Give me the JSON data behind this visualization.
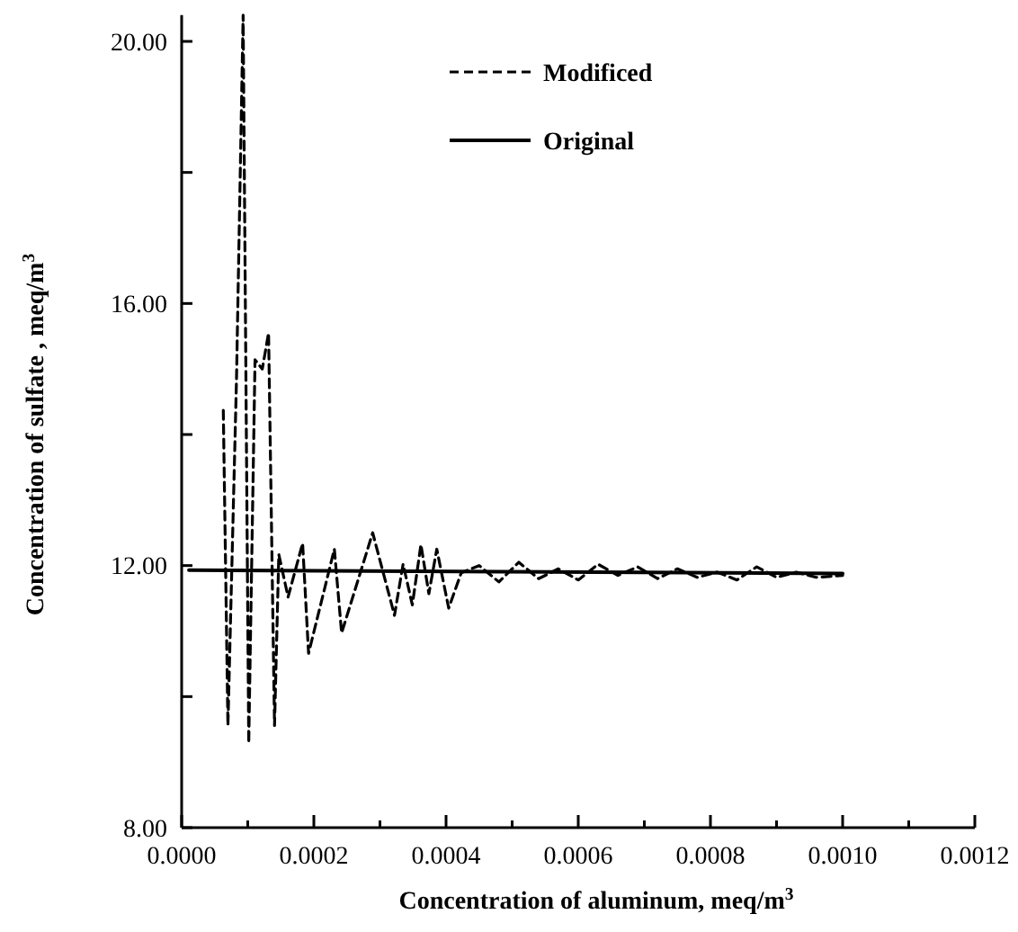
{
  "chart_data": {
    "type": "line",
    "xlabel": "Concentration of aluminum, meq/m$^{3}$",
    "ylabel": "Concentration of sulfate , meq/m$^{3}$",
    "xlim": [
      0,
      0.0012
    ],
    "ylim": [
      8,
      20.4
    ],
    "xticks": [
      {
        "value": 0,
        "label": "0.0000"
      },
      {
        "value": 0.0001,
        "label": null
      },
      {
        "value": 0.0002,
        "label": "0.0002"
      },
      {
        "value": 0.0003,
        "label": null
      },
      {
        "value": 0.0004,
        "label": "0.0004"
      },
      {
        "value": 0.0005,
        "label": null
      },
      {
        "value": 0.0006,
        "label": "0.0006"
      },
      {
        "value": 0.0007,
        "label": null
      },
      {
        "value": 0.0008,
        "label": "0.0008"
      },
      {
        "value": 0.0009,
        "label": null
      },
      {
        "value": 0.001,
        "label": "0.0010"
      },
      {
        "value": 0.0011,
        "label": null
      },
      {
        "value": 0.0012,
        "label": "0.0012"
      }
    ],
    "yticks": [
      {
        "value": 8,
        "label": "8.00"
      },
      {
        "value": 10,
        "label": null
      },
      {
        "value": 12,
        "label": "12.00"
      },
      {
        "value": 14,
        "label": null
      },
      {
        "value": 16,
        "label": "16.00"
      },
      {
        "value": 18,
        "label": null
      },
      {
        "value": 20,
        "label": "20.00"
      }
    ],
    "legend": "top",
    "grid": false,
    "series": [
      {
        "name": "Modificed",
        "color": "#000000",
        "line_style": "dashed",
        "x": [
          6.3e-05,
          7e-05,
          8.3e-05,
          9.3e-05,
          0.0001015,
          0.000111,
          0.000122,
          0.0001315,
          0.0001405,
          0.000147,
          0.000161,
          0.000183,
          0.000192,
          0.000231,
          0.000242,
          0.000289,
          0.000322,
          0.000335,
          0.000349,
          0.000362,
          0.000374,
          0.000386,
          0.000404,
          0.000423,
          0.00045,
          0.00048,
          0.00051,
          0.00054,
          0.00057,
          0.0006,
          0.00063,
          0.00066,
          0.00069,
          0.00072,
          0.00075,
          0.00078,
          0.00081,
          0.00084,
          0.00087,
          0.0009,
          0.00093,
          0.00096,
          0.001
        ],
        "values": [
          14.37,
          9.56,
          14.86,
          20.4,
          9.29,
          15.14,
          15.0,
          15.55,
          9.56,
          12.17,
          11.52,
          12.34,
          10.66,
          12.25,
          10.97,
          12.5,
          11.24,
          12.02,
          11.4,
          12.32,
          11.57,
          12.25,
          11.35,
          11.89,
          12.0,
          11.75,
          12.05,
          11.8,
          11.95,
          11.78,
          12.02,
          11.85,
          11.98,
          11.8,
          11.95,
          11.82,
          11.9,
          11.78,
          11.98,
          11.82,
          11.9,
          11.82,
          11.85
        ]
      },
      {
        "name": "Original",
        "color": "#000000",
        "line_style": "solid",
        "x": [
          1.1e-05,
          0.001
        ],
        "values": [
          11.93,
          11.88
        ]
      }
    ]
  }
}
